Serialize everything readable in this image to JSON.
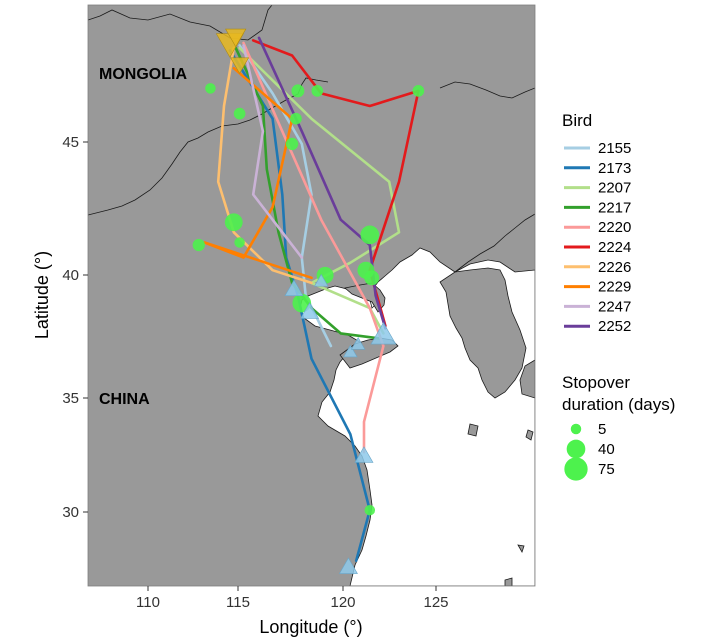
{
  "map": {
    "labels": {
      "mongolia": "MONGOLIA",
      "china": "CHINA"
    },
    "x_axis": {
      "title": "Longitude (°)",
      "ticks": [
        "110",
        "115",
        "120",
        "125"
      ]
    },
    "y_axis": {
      "title": "Latitude (°)",
      "ticks": [
        "30",
        "35",
        "40",
        "45"
      ]
    },
    "colors": {
      "land": "#999999",
      "sea": "#ffffff",
      "border": "#1a1a1a",
      "stopover": "#4df24d",
      "start_marker": "#e8b820",
      "end_marker": "#8ec9ea"
    }
  },
  "legend": {
    "bird_title": "Bird",
    "birds": [
      {
        "id": "2155",
        "color": "#a6cee3"
      },
      {
        "id": "2173",
        "color": "#1f78b4"
      },
      {
        "id": "2207",
        "color": "#b2df8a"
      },
      {
        "id": "2217",
        "color": "#33a02c"
      },
      {
        "id": "2220",
        "color": "#fb9a99"
      },
      {
        "id": "2224",
        "color": "#e31a1c"
      },
      {
        "id": "2226",
        "color": "#fdbf6f"
      },
      {
        "id": "2229",
        "color": "#ff7f00"
      },
      {
        "id": "2247",
        "color": "#cab2d6"
      },
      {
        "id": "2252",
        "color": "#6a3d9a"
      }
    ],
    "size_title_line1": "Stopover",
    "size_title_line2": "duration (days)",
    "sizes": [
      {
        "label": "5",
        "value": 5
      },
      {
        "label": "40",
        "value": 40
      },
      {
        "label": "75",
        "value": 75
      }
    ]
  },
  "chart_data": {
    "type": "map",
    "xlabel": "Longitude (°)",
    "ylabel": "Latitude (°)",
    "xlim": [
      107,
      130
    ],
    "ylim": [
      27,
      50
    ],
    "tracks": [
      {
        "bird": "2155",
        "points": [
          [
            114.8,
            48.4
          ],
          [
            116.5,
            46.5
          ],
          [
            118.0,
            44.5
          ],
          [
            118.5,
            42.5
          ],
          [
            118.0,
            40.0
          ],
          [
            118.2,
            38.5
          ],
          [
            119.5,
            36.5
          ]
        ]
      },
      {
        "bird": "2173",
        "points": [
          [
            114.3,
            48.2
          ],
          [
            116.5,
            45.5
          ],
          [
            117.0,
            42.5
          ],
          [
            117.2,
            40.0
          ],
          [
            117.8,
            38.5
          ],
          [
            118.5,
            36.0
          ],
          [
            120.5,
            33.0
          ],
          [
            121.5,
            30.0
          ],
          [
            120.8,
            28.0
          ]
        ]
      },
      {
        "bird": "2207",
        "points": [
          [
            114.8,
            48.3
          ],
          [
            118.5,
            45.5
          ],
          [
            122.5,
            43.0
          ],
          [
            123.0,
            41.0
          ],
          [
            120.5,
            39.8
          ],
          [
            118.5,
            39.0
          ],
          [
            121.5,
            38.0
          ],
          [
            122.2,
            37.0
          ]
        ]
      },
      {
        "bird": "2217",
        "points": [
          [
            114.6,
            48.3
          ],
          [
            116.0,
            46.0
          ],
          [
            116.2,
            43.5
          ],
          [
            116.8,
            41.0
          ],
          [
            117.5,
            39.0
          ],
          [
            118.5,
            38.0
          ],
          [
            120.0,
            37.0
          ],
          [
            122.0,
            36.8
          ]
        ]
      },
      {
        "bird": "2220",
        "points": [
          [
            115.0,
            48.5
          ],
          [
            117.0,
            45.0
          ],
          [
            119.0,
            41.5
          ],
          [
            121.5,
            38.0
          ],
          [
            122.2,
            36.5
          ],
          [
            121.2,
            33.5
          ],
          [
            121.2,
            32.3
          ]
        ]
      },
      {
        "bird": "2224",
        "points": [
          [
            115.5,
            48.6
          ],
          [
            117.5,
            48.0
          ],
          [
            119.0,
            46.5
          ],
          [
            121.5,
            46.0
          ],
          [
            124.0,
            46.6
          ],
          [
            123.0,
            43.0
          ],
          [
            121.5,
            39.5
          ],
          [
            122.3,
            37.3
          ]
        ]
      },
      {
        "bird": "2226",
        "points": [
          [
            114.5,
            48.3
          ],
          [
            114.0,
            46.0
          ],
          [
            113.7,
            43.0
          ],
          [
            114.5,
            41.0
          ],
          [
            116.5,
            39.5
          ],
          [
            118.5,
            39.0
          ]
        ]
      },
      {
        "bird": "2229",
        "points": [
          [
            114.5,
            47.5
          ],
          [
            117.5,
            45.5
          ],
          [
            116.5,
            42.0
          ],
          [
            115.0,
            40.0
          ],
          [
            113.0,
            40.6
          ],
          [
            118.5,
            39.2
          ]
        ]
      },
      {
        "bird": "2247",
        "points": [
          [
            115.0,
            48.4
          ],
          [
            116.0,
            45.0
          ],
          [
            115.5,
            42.5
          ],
          [
            117.0,
            41.0
          ],
          [
            118.0,
            40.0
          ]
        ]
      },
      {
        "bird": "2252",
        "points": [
          [
            115.8,
            48.7
          ],
          [
            118.0,
            45.0
          ],
          [
            120.0,
            41.5
          ],
          [
            121.5,
            40.5
          ],
          [
            121.8,
            38.5
          ],
          [
            122.3,
            37.2
          ]
        ]
      }
    ],
    "stopovers": [
      {
        "lon": 113.3,
        "lat": 46.7,
        "days": 5
      },
      {
        "lon": 114.8,
        "lat": 45.7,
        "days": 8
      },
      {
        "lon": 117.8,
        "lat": 46.6,
        "days": 12
      },
      {
        "lon": 118.8,
        "lat": 46.6,
        "days": 8
      },
      {
        "lon": 124.0,
        "lat": 46.6,
        "days": 8
      },
      {
        "lon": 117.7,
        "lat": 45.5,
        "days": 8
      },
      {
        "lon": 117.5,
        "lat": 44.5,
        "days": 10
      },
      {
        "lon": 114.5,
        "lat": 41.4,
        "days": 35
      },
      {
        "lon": 112.7,
        "lat": 40.5,
        "days": 10
      },
      {
        "lon": 114.8,
        "lat": 40.6,
        "days": 5
      },
      {
        "lon": 121.5,
        "lat": 40.9,
        "days": 40
      },
      {
        "lon": 121.3,
        "lat": 39.5,
        "days": 30
      },
      {
        "lon": 121.6,
        "lat": 39.2,
        "days": 20
      },
      {
        "lon": 119.2,
        "lat": 39.3,
        "days": 30
      },
      {
        "lon": 118.0,
        "lat": 38.2,
        "days": 40
      },
      {
        "lon": 121.5,
        "lat": 30.0,
        "days": 5
      }
    ],
    "start_markers": [
      {
        "lon": 114.3,
        "lat": 48.4,
        "size": 60
      },
      {
        "lon": 114.6,
        "lat": 48.7,
        "size": 45
      },
      {
        "lon": 114.8,
        "lat": 47.6,
        "size": 40
      }
    ],
    "end_markers": [
      {
        "lon": 117.6,
        "lat": 38.8,
        "size": 40
      },
      {
        "lon": 118.4,
        "lat": 37.9,
        "size": 40
      },
      {
        "lon": 119.0,
        "lat": 39.1,
        "size": 30
      },
      {
        "lon": 120.5,
        "lat": 36.3,
        "size": 30
      },
      {
        "lon": 120.9,
        "lat": 36.6,
        "size": 30
      },
      {
        "lon": 122.2,
        "lat": 37.0,
        "size": 55
      },
      {
        "lon": 121.2,
        "lat": 32.2,
        "size": 40
      },
      {
        "lon": 120.4,
        "lat": 27.8,
        "size": 40
      }
    ]
  }
}
